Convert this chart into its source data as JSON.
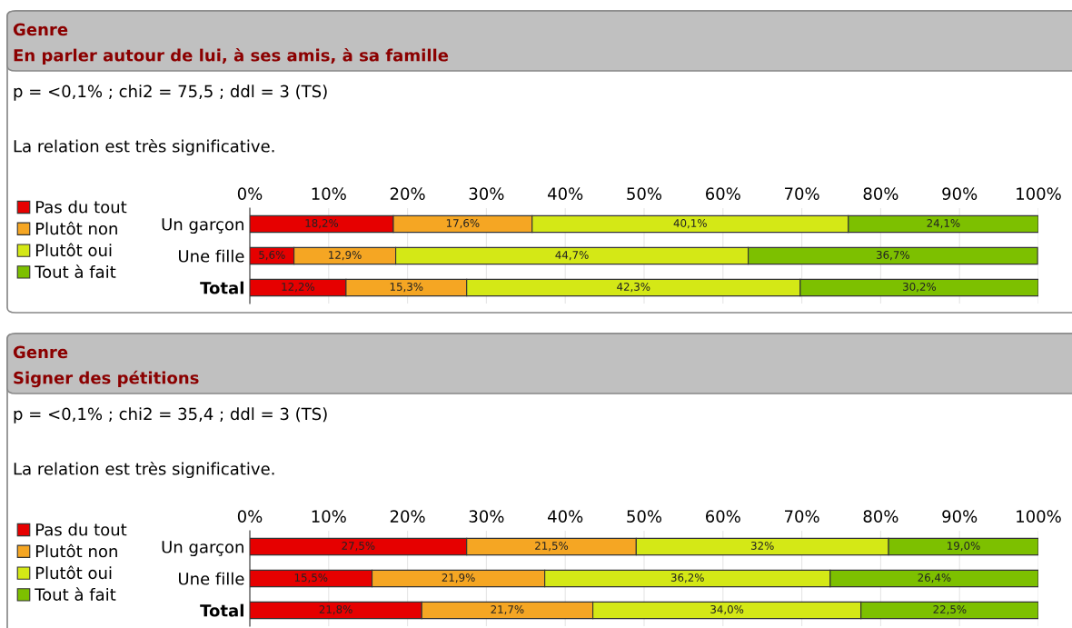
{
  "chart_data": [
    {
      "type": "bar",
      "orientation": "horizontal",
      "stacked": true,
      "title": "Genre",
      "subtitle": "En parler autour de lui, à ses amis, à sa famille",
      "annotations": [
        "p = <0,1% ; chi2 = 75,5 ; ddl = 3 (TS)",
        "La relation est très significative."
      ],
      "categories": [
        "Un garçon",
        "Une fille",
        "Total"
      ],
      "series": [
        {
          "name": "Pas du tout",
          "color": "#e60000",
          "values": [
            18.2,
            5.6,
            12.2
          ],
          "value_labels": [
            "18,2%",
            "5,6%",
            "12,2%"
          ]
        },
        {
          "name": "Plutôt non",
          "color": "#f5a623",
          "values": [
            17.6,
            12.9,
            15.3
          ],
          "value_labels": [
            "17,6%",
            "12,9%",
            "15,3%"
          ]
        },
        {
          "name": "Plutôt oui",
          "color": "#d4e816",
          "values": [
            40.1,
            44.7,
            42.3
          ],
          "value_labels": [
            "40,1%",
            "44,7%",
            "42,3%"
          ]
        },
        {
          "name": "Tout à fait",
          "color": "#7dc000",
          "values": [
            24.1,
            36.7,
            30.2
          ],
          "value_labels": [
            "24,1%",
            "36,7%",
            "30,2%"
          ]
        }
      ],
      "xlim": [
        0,
        100
      ],
      "xticks": [
        {
          "value": 0,
          "label": "0%"
        },
        {
          "value": 10,
          "label": "10%"
        },
        {
          "value": 20,
          "label": "20%"
        },
        {
          "value": 30,
          "label": "30%"
        },
        {
          "value": 40,
          "label": "40%"
        },
        {
          "value": 50,
          "label": "50%"
        },
        {
          "value": 60,
          "label": "60%"
        },
        {
          "value": 70,
          "label": "70%"
        },
        {
          "value": 80,
          "label": "80%"
        },
        {
          "value": 90,
          "label": "90%"
        },
        {
          "value": 100,
          "label": "100%"
        }
      ],
      "grid": "x",
      "legend": "left"
    },
    {
      "type": "bar",
      "orientation": "horizontal",
      "stacked": true,
      "title": "Genre",
      "subtitle": "Signer des pétitions",
      "annotations": [
        "p = <0,1% ; chi2 = 35,4 ; ddl = 3 (TS)",
        "La relation est très significative."
      ],
      "categories": [
        "Un garçon",
        "Une fille",
        "Total"
      ],
      "series": [
        {
          "name": "Pas du tout",
          "color": "#e60000",
          "values": [
            27.5,
            15.5,
            21.8
          ],
          "value_labels": [
            "27,5%",
            "15,5%",
            "21,8%"
          ]
        },
        {
          "name": "Plutôt non",
          "color": "#f5a623",
          "values": [
            21.5,
            21.9,
            21.7
          ],
          "value_labels": [
            "21,5%",
            "21,9%",
            "21,7%"
          ]
        },
        {
          "name": "Plutôt oui",
          "color": "#d4e816",
          "values": [
            32,
            36.2,
            34.0
          ],
          "value_labels": [
            "32%",
            "36,2%",
            "34,0%"
          ]
        },
        {
          "name": "Tout à fait",
          "color": "#7dc000",
          "values": [
            19.0,
            26.4,
            22.5
          ],
          "value_labels": [
            "19,0%",
            "26,4%",
            "22,5%"
          ]
        }
      ],
      "xlim": [
        0,
        100
      ],
      "xticks": [
        {
          "value": 0,
          "label": "0%"
        },
        {
          "value": 10,
          "label": "10%"
        },
        {
          "value": 20,
          "label": "20%"
        },
        {
          "value": 30,
          "label": "30%"
        },
        {
          "value": 40,
          "label": "40%"
        },
        {
          "value": 50,
          "label": "50%"
        },
        {
          "value": 60,
          "label": "60%"
        },
        {
          "value": 70,
          "label": "70%"
        },
        {
          "value": 80,
          "label": "80%"
        },
        {
          "value": 90,
          "label": "90%"
        },
        {
          "value": 100,
          "label": "100%"
        }
      ],
      "grid": "x",
      "legend": "left"
    }
  ]
}
